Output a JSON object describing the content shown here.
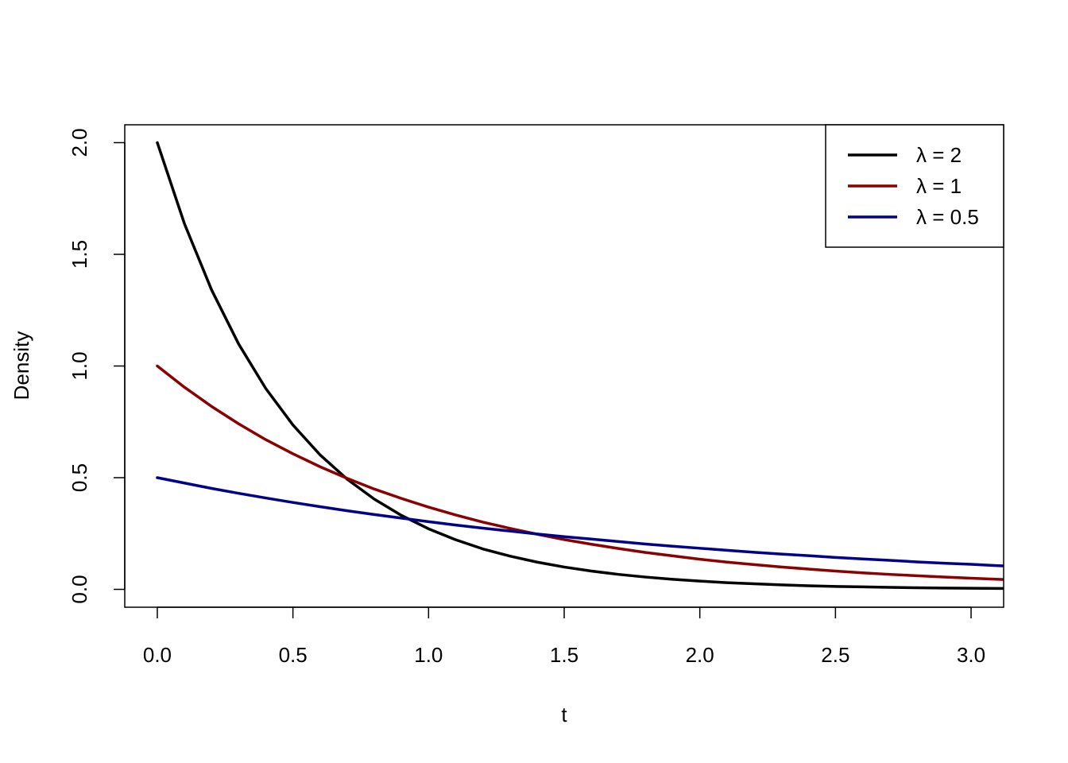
{
  "chart_data": {
    "type": "line",
    "xlabel": "t",
    "ylabel": "Density",
    "xlim": [
      -0.12,
      3.12
    ],
    "ylim": [
      -0.08,
      2.08
    ],
    "xticks": [
      0.0,
      0.5,
      1.0,
      1.5,
      2.0,
      2.5,
      3.0
    ],
    "xtick_labels": [
      "0.0",
      "0.5",
      "1.0",
      "1.5",
      "2.0",
      "2.5",
      "3.0"
    ],
    "yticks": [
      0.0,
      0.5,
      1.0,
      1.5,
      2.0
    ],
    "ytick_labels": [
      "0.0",
      "0.5",
      "1.0",
      "1.5",
      "2.0"
    ],
    "grid": false,
    "legend_position": "top-right",
    "x": [
      0.0,
      0.1,
      0.2,
      0.3,
      0.4,
      0.5,
      0.6,
      0.7,
      0.8,
      0.9,
      1.0,
      1.1,
      1.2,
      1.3,
      1.4,
      1.5,
      1.6,
      1.7,
      1.8,
      1.9,
      2.0,
      2.1,
      2.2,
      2.3,
      2.4,
      2.5,
      2.6,
      2.7,
      2.8,
      2.9,
      3.0,
      3.1,
      3.12
    ],
    "series": [
      {
        "name": "λ = 2",
        "color": "#000000",
        "values": [
          2.0,
          1.637,
          1.341,
          1.098,
          0.899,
          0.736,
          0.602,
          0.493,
          0.404,
          0.331,
          0.271,
          0.222,
          0.181,
          0.149,
          0.122,
          0.1,
          0.082,
          0.067,
          0.055,
          0.045,
          0.037,
          0.03,
          0.025,
          0.02,
          0.016,
          0.013,
          0.011,
          0.009,
          0.007,
          0.006,
          0.005,
          0.004,
          0.004
        ]
      },
      {
        "name": "λ = 1",
        "color": "#8b0000",
        "values": [
          1.0,
          0.905,
          0.819,
          0.741,
          0.67,
          0.607,
          0.549,
          0.497,
          0.449,
          0.407,
          0.368,
          0.333,
          0.301,
          0.273,
          0.247,
          0.223,
          0.202,
          0.183,
          0.165,
          0.15,
          0.135,
          0.122,
          0.111,
          0.1,
          0.091,
          0.082,
          0.074,
          0.067,
          0.061,
          0.055,
          0.05,
          0.045,
          0.044
        ]
      },
      {
        "name": "λ = 0.5",
        "color": "#00008b",
        "values": [
          0.5,
          0.476,
          0.452,
          0.43,
          0.409,
          0.389,
          0.37,
          0.352,
          0.335,
          0.319,
          0.303,
          0.288,
          0.274,
          0.261,
          0.248,
          0.236,
          0.225,
          0.214,
          0.203,
          0.193,
          0.184,
          0.175,
          0.166,
          0.158,
          0.151,
          0.143,
          0.136,
          0.13,
          0.123,
          0.117,
          0.112,
          0.106,
          0.105
        ]
      }
    ]
  }
}
